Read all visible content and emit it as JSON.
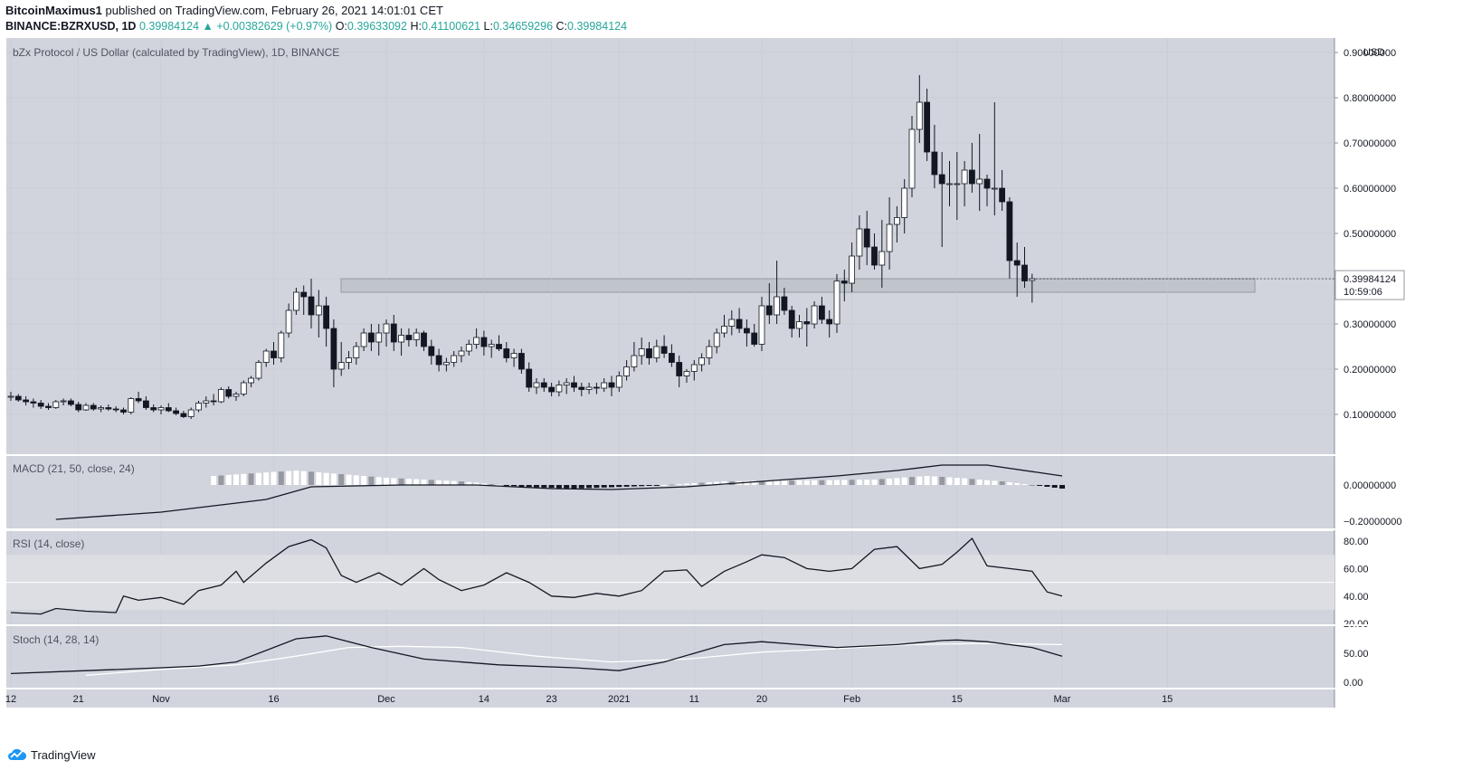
{
  "header": {
    "author": "BitcoinMaximus1",
    "published": "published on TradingView.com, February 26, 2021 14:01:01 CET",
    "symbol": "BINANCE:BZRXUSD, 1D",
    "last": "0.39984124",
    "change": "+0.00382629 (+0.97%)",
    "o_label": "O:",
    "o": "0.39633092",
    "h_label": "H:",
    "h": "0.41100621",
    "l_label": "L:",
    "l": "0.34659296",
    "c_label": "C:",
    "c": "0.39984124"
  },
  "footer": {
    "brand": "TradingView"
  },
  "chart_data": {
    "type": "candlestick",
    "title": "bZx Protocol / US Dollar (calculated by TradingView), 1D, BINANCE",
    "currency": "USD",
    "price_ticks": [
      "0.10000000",
      "0.20000000",
      "0.30000000",
      "0.40000000",
      "0.50000000",
      "0.60000000",
      "0.70000000",
      "0.80000000",
      "0.90000000"
    ],
    "last_price_label": "0.39984124",
    "countdown": "10:59:06",
    "resistance_zone": [
      0.37,
      0.4
    ],
    "x_ticks": [
      {
        "label": "12",
        "i": 0
      },
      {
        "label": "21",
        "i": 9
      },
      {
        "label": "Nov",
        "i": 20
      },
      {
        "label": "16",
        "i": 35
      },
      {
        "label": "Dec",
        "i": 50
      },
      {
        "label": "14",
        "i": 63
      },
      {
        "label": "23",
        "i": 72
      },
      {
        "label": "2021",
        "i": 81
      },
      {
        "label": "11",
        "i": 91
      },
      {
        "label": "20",
        "i": 100
      },
      {
        "label": "Feb",
        "i": 112
      },
      {
        "label": "15",
        "i": 126
      },
      {
        "label": "Mar",
        "i": 140
      },
      {
        "label": "15",
        "i": 154
      }
    ],
    "candles": [
      [
        0.14,
        0.15,
        0.13,
        0.14
      ],
      [
        0.14,
        0.145,
        0.128,
        0.132
      ],
      [
        0.132,
        0.14,
        0.12,
        0.128
      ],
      [
        0.128,
        0.135,
        0.115,
        0.125
      ],
      [
        0.125,
        0.132,
        0.112,
        0.118
      ],
      [
        0.118,
        0.125,
        0.11,
        0.115
      ],
      [
        0.115,
        0.132,
        0.112,
        0.128
      ],
      [
        0.128,
        0.135,
        0.12,
        0.13
      ],
      [
        0.13,
        0.135,
        0.118,
        0.122
      ],
      [
        0.122,
        0.128,
        0.105,
        0.11
      ],
      [
        0.11,
        0.125,
        0.108,
        0.12
      ],
      [
        0.12,
        0.125,
        0.108,
        0.112
      ],
      [
        0.112,
        0.12,
        0.105,
        0.115
      ],
      [
        0.115,
        0.122,
        0.108,
        0.112
      ],
      [
        0.112,
        0.118,
        0.105,
        0.11
      ],
      [
        0.11,
        0.115,
        0.1,
        0.105
      ],
      [
        0.105,
        0.138,
        0.1,
        0.135
      ],
      [
        0.135,
        0.15,
        0.125,
        0.13
      ],
      [
        0.13,
        0.14,
        0.11,
        0.115
      ],
      [
        0.115,
        0.122,
        0.105,
        0.11
      ],
      [
        0.11,
        0.12,
        0.1,
        0.115
      ],
      [
        0.115,
        0.125,
        0.105,
        0.108
      ],
      [
        0.108,
        0.115,
        0.098,
        0.102
      ],
      [
        0.102,
        0.108,
        0.092,
        0.095
      ],
      [
        0.095,
        0.115,
        0.09,
        0.11
      ],
      [
        0.11,
        0.13,
        0.105,
        0.125
      ],
      [
        0.125,
        0.14,
        0.115,
        0.13
      ],
      [
        0.13,
        0.145,
        0.12,
        0.128
      ],
      [
        0.128,
        0.16,
        0.125,
        0.155
      ],
      [
        0.155,
        0.162,
        0.135,
        0.14
      ],
      [
        0.14,
        0.15,
        0.13,
        0.145
      ],
      [
        0.145,
        0.175,
        0.14,
        0.17
      ],
      [
        0.17,
        0.185,
        0.16,
        0.18
      ],
      [
        0.18,
        0.22,
        0.175,
        0.215
      ],
      [
        0.215,
        0.245,
        0.205,
        0.24
      ],
      [
        0.24,
        0.26,
        0.21,
        0.225
      ],
      [
        0.225,
        0.285,
        0.215,
        0.28
      ],
      [
        0.28,
        0.345,
        0.27,
        0.33
      ],
      [
        0.33,
        0.38,
        0.32,
        0.37
      ],
      [
        0.37,
        0.385,
        0.32,
        0.36
      ],
      [
        0.36,
        0.4,
        0.29,
        0.32
      ],
      [
        0.32,
        0.375,
        0.27,
        0.34
      ],
      [
        0.34,
        0.36,
        0.25,
        0.29
      ],
      [
        0.29,
        0.31,
        0.16,
        0.2
      ],
      [
        0.2,
        0.26,
        0.185,
        0.215
      ],
      [
        0.215,
        0.24,
        0.2,
        0.225
      ],
      [
        0.225,
        0.26,
        0.21,
        0.25
      ],
      [
        0.25,
        0.29,
        0.24,
        0.28
      ],
      [
        0.28,
        0.3,
        0.24,
        0.26
      ],
      [
        0.26,
        0.3,
        0.23,
        0.28
      ],
      [
        0.28,
        0.31,
        0.25,
        0.3
      ],
      [
        0.3,
        0.32,
        0.24,
        0.26
      ],
      [
        0.26,
        0.29,
        0.23,
        0.275
      ],
      [
        0.275,
        0.29,
        0.25,
        0.265
      ],
      [
        0.265,
        0.29,
        0.25,
        0.28
      ],
      [
        0.28,
        0.285,
        0.24,
        0.25
      ],
      [
        0.25,
        0.265,
        0.21,
        0.23
      ],
      [
        0.23,
        0.245,
        0.195,
        0.21
      ],
      [
        0.21,
        0.225,
        0.195,
        0.215
      ],
      [
        0.215,
        0.24,
        0.205,
        0.23
      ],
      [
        0.23,
        0.25,
        0.215,
        0.24
      ],
      [
        0.24,
        0.265,
        0.23,
        0.255
      ],
      [
        0.255,
        0.29,
        0.245,
        0.27
      ],
      [
        0.27,
        0.285,
        0.23,
        0.25
      ],
      [
        0.25,
        0.265,
        0.225,
        0.255
      ],
      [
        0.255,
        0.275,
        0.24,
        0.245
      ],
      [
        0.245,
        0.26,
        0.215,
        0.225
      ],
      [
        0.225,
        0.245,
        0.205,
        0.235
      ],
      [
        0.235,
        0.245,
        0.19,
        0.2
      ],
      [
        0.2,
        0.215,
        0.15,
        0.16
      ],
      [
        0.16,
        0.18,
        0.145,
        0.17
      ],
      [
        0.17,
        0.18,
        0.15,
        0.16
      ],
      [
        0.16,
        0.17,
        0.14,
        0.15
      ],
      [
        0.15,
        0.175,
        0.14,
        0.165
      ],
      [
        0.165,
        0.18,
        0.145,
        0.17
      ],
      [
        0.17,
        0.185,
        0.15,
        0.16
      ],
      [
        0.16,
        0.17,
        0.14,
        0.155
      ],
      [
        0.155,
        0.17,
        0.145,
        0.16
      ],
      [
        0.16,
        0.17,
        0.145,
        0.158
      ],
      [
        0.158,
        0.18,
        0.15,
        0.17
      ],
      [
        0.17,
        0.185,
        0.14,
        0.16
      ],
      [
        0.16,
        0.195,
        0.15,
        0.185
      ],
      [
        0.185,
        0.22,
        0.175,
        0.205
      ],
      [
        0.205,
        0.26,
        0.195,
        0.23
      ],
      [
        0.23,
        0.27,
        0.21,
        0.245
      ],
      [
        0.245,
        0.26,
        0.21,
        0.225
      ],
      [
        0.225,
        0.265,
        0.215,
        0.25
      ],
      [
        0.25,
        0.275,
        0.225,
        0.235
      ],
      [
        0.235,
        0.255,
        0.205,
        0.215
      ],
      [
        0.215,
        0.23,
        0.16,
        0.185
      ],
      [
        0.185,
        0.2,
        0.17,
        0.195
      ],
      [
        0.195,
        0.22,
        0.175,
        0.21
      ],
      [
        0.21,
        0.235,
        0.195,
        0.225
      ],
      [
        0.225,
        0.265,
        0.21,
        0.25
      ],
      [
        0.25,
        0.29,
        0.235,
        0.28
      ],
      [
        0.28,
        0.32,
        0.27,
        0.295
      ],
      [
        0.295,
        0.33,
        0.275,
        0.31
      ],
      [
        0.31,
        0.335,
        0.28,
        0.29
      ],
      [
        0.29,
        0.31,
        0.25,
        0.28
      ],
      [
        0.28,
        0.3,
        0.25,
        0.255
      ],
      [
        0.255,
        0.36,
        0.24,
        0.34
      ],
      [
        0.34,
        0.39,
        0.3,
        0.32
      ],
      [
        0.32,
        0.44,
        0.3,
        0.36
      ],
      [
        0.36,
        0.38,
        0.32,
        0.33
      ],
      [
        0.33,
        0.34,
        0.27,
        0.29
      ],
      [
        0.29,
        0.32,
        0.27,
        0.305
      ],
      [
        0.305,
        0.335,
        0.25,
        0.3
      ],
      [
        0.3,
        0.35,
        0.29,
        0.34
      ],
      [
        0.34,
        0.36,
        0.3,
        0.31
      ],
      [
        0.31,
        0.33,
        0.27,
        0.3
      ],
      [
        0.3,
        0.41,
        0.28,
        0.395
      ],
      [
        0.395,
        0.42,
        0.35,
        0.39
      ],
      [
        0.39,
        0.48,
        0.37,
        0.45
      ],
      [
        0.45,
        0.54,
        0.42,
        0.51
      ],
      [
        0.51,
        0.55,
        0.43,
        0.47
      ],
      [
        0.47,
        0.5,
        0.42,
        0.43
      ],
      [
        0.43,
        0.53,
        0.38,
        0.46
      ],
      [
        0.46,
        0.58,
        0.42,
        0.52
      ],
      [
        0.52,
        0.56,
        0.48,
        0.535
      ],
      [
        0.535,
        0.62,
        0.5,
        0.6
      ],
      [
        0.6,
        0.76,
        0.58,
        0.73
      ],
      [
        0.73,
        0.85,
        0.7,
        0.79
      ],
      [
        0.79,
        0.82,
        0.66,
        0.68
      ],
      [
        0.68,
        0.74,
        0.6,
        0.63
      ],
      [
        0.63,
        0.68,
        0.47,
        0.61
      ],
      [
        0.61,
        0.66,
        0.56,
        0.61
      ],
      [
        0.61,
        0.68,
        0.53,
        0.61
      ],
      [
        0.61,
        0.66,
        0.56,
        0.64
      ],
      [
        0.64,
        0.7,
        0.59,
        0.61
      ],
      [
        0.61,
        0.72,
        0.55,
        0.62
      ],
      [
        0.62,
        0.63,
        0.56,
        0.6
      ],
      [
        0.6,
        0.79,
        0.54,
        0.6
      ],
      [
        0.6,
        0.64,
        0.55,
        0.57
      ],
      [
        0.57,
        0.58,
        0.4,
        0.44
      ],
      [
        0.44,
        0.48,
        0.36,
        0.43
      ],
      [
        0.43,
        0.47,
        0.38,
        0.395
      ],
      [
        0.396,
        0.411,
        0.347,
        0.4
      ]
    ],
    "macd": {
      "label": "MACD (21, 50, close, 24)",
      "ticks": [
        "0.00000000",
        "−0.20000000"
      ],
      "line": [
        [
          6,
          -0.19
        ],
        [
          20,
          -0.15
        ],
        [
          34,
          -0.08
        ],
        [
          40,
          -0.01
        ],
        [
          52,
          0.0
        ],
        [
          62,
          0.0
        ],
        [
          72,
          -0.02
        ],
        [
          80,
          -0.025
        ],
        [
          90,
          -0.01
        ],
        [
          100,
          0.02
        ],
        [
          110,
          0.05
        ],
        [
          118,
          0.08
        ],
        [
          124,
          0.11
        ],
        [
          130,
          0.11
        ],
        [
          140,
          0.05
        ]
      ],
      "hist": [
        [
          27,
          0.05
        ],
        [
          38,
          0.08
        ],
        [
          41,
          0.07
        ],
        [
          50,
          0.04
        ],
        [
          60,
          0.02
        ],
        [
          68,
          -0.01
        ],
        [
          75,
          -0.02
        ],
        [
          85,
          -0.005
        ],
        [
          95,
          0.02
        ],
        [
          105,
          0.025
        ],
        [
          115,
          0.03
        ],
        [
          122,
          0.05
        ],
        [
          126,
          0.04
        ],
        [
          132,
          0.02
        ],
        [
          138,
          -0.01
        ],
        [
          140,
          -0.02
        ]
      ]
    },
    "rsi": {
      "label": "RSI (14, close)",
      "ticks": [
        "20.00",
        "40.00",
        "60.00",
        "80.00"
      ],
      "band": [
        30,
        70
      ],
      "mid": 50,
      "line": [
        [
          0,
          28
        ],
        [
          4,
          27
        ],
        [
          6,
          31
        ],
        [
          10,
          29
        ],
        [
          14,
          28
        ],
        [
          15,
          40
        ],
        [
          17,
          37
        ],
        [
          20,
          39
        ],
        [
          23,
          34
        ],
        [
          25,
          44
        ],
        [
          28,
          48
        ],
        [
          30,
          58
        ],
        [
          31,
          50
        ],
        [
          34,
          64
        ],
        [
          37,
          76
        ],
        [
          40,
          81
        ],
        [
          42,
          75
        ],
        [
          44,
          55
        ],
        [
          46,
          50
        ],
        [
          49,
          57
        ],
        [
          52,
          48
        ],
        [
          55,
          60
        ],
        [
          57,
          52
        ],
        [
          60,
          44
        ],
        [
          63,
          48
        ],
        [
          66,
          57
        ],
        [
          69,
          50
        ],
        [
          72,
          40
        ],
        [
          75,
          39
        ],
        [
          78,
          42
        ],
        [
          81,
          40
        ],
        [
          84,
          44
        ],
        [
          87,
          58
        ],
        [
          90,
          59
        ],
        [
          92,
          47
        ],
        [
          95,
          58
        ],
        [
          98,
          65
        ],
        [
          100,
          70
        ],
        [
          103,
          68
        ],
        [
          106,
          60
        ],
        [
          109,
          58
        ],
        [
          112,
          60
        ],
        [
          115,
          74
        ],
        [
          118,
          76
        ],
        [
          121,
          60
        ],
        [
          124,
          63
        ],
        [
          126,
          72
        ],
        [
          128,
          82
        ],
        [
          130,
          62
        ],
        [
          133,
          60
        ],
        [
          136,
          58
        ],
        [
          138,
          43
        ],
        [
          140,
          40
        ]
      ]
    },
    "stoch": {
      "label": "Stoch (14, 28, 14)",
      "ticks": [
        "0.00",
        "50.00"
      ],
      "k": [
        [
          0,
          15
        ],
        [
          10,
          20
        ],
        [
          20,
          25
        ],
        [
          25,
          28
        ],
        [
          30,
          35
        ],
        [
          38,
          75
        ],
        [
          42,
          80
        ],
        [
          48,
          60
        ],
        [
          55,
          40
        ],
        [
          65,
          30
        ],
        [
          75,
          25
        ],
        [
          81,
          20
        ],
        [
          87,
          35
        ],
        [
          95,
          65
        ],
        [
          100,
          70
        ],
        [
          110,
          60
        ],
        [
          118,
          65
        ],
        [
          124,
          72
        ],
        [
          126,
          73
        ],
        [
          130,
          70
        ],
        [
          136,
          60
        ],
        [
          140,
          45
        ]
      ],
      "d": [
        [
          10,
          12
        ],
        [
          20,
          22
        ],
        [
          30,
          30
        ],
        [
          38,
          45
        ],
        [
          45,
          60
        ],
        [
          52,
          62
        ],
        [
          60,
          60
        ],
        [
          70,
          45
        ],
        [
          80,
          35
        ],
        [
          90,
          40
        ],
        [
          100,
          52
        ],
        [
          110,
          58
        ],
        [
          120,
          65
        ],
        [
          130,
          67
        ],
        [
          140,
          65
        ]
      ]
    }
  }
}
